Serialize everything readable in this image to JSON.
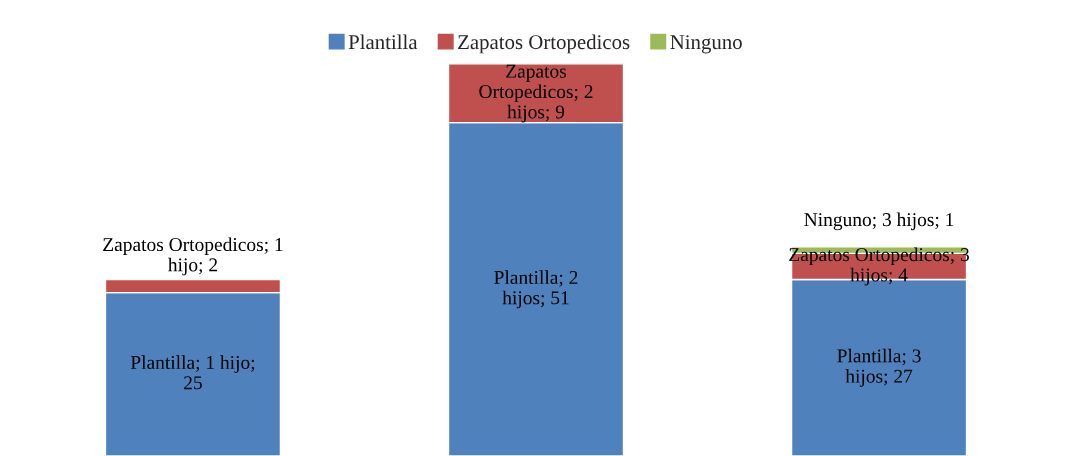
{
  "chart_data": {
    "type": "bar",
    "stacked": true,
    "categories": [
      null,
      null,
      null
    ],
    "tick_labels": false,
    "legend": "top",
    "grid": false,
    "series": [
      {
        "name": "Plantilla",
        "color": "#4f81bd",
        "values": [
          25,
          51,
          27
        ],
        "value_labels": [
          "Plantilla; 1 hijo; 25",
          "Plantilla; 2 hijos; 51",
          "Plantilla; 3 hijos; 27"
        ]
      },
      {
        "name": "Zapatos Ortopedicos",
        "color": "#c0504d",
        "values": [
          2,
          9,
          4
        ],
        "value_labels": [
          "Zapatos Ortopedicos; 1 hijo; 2",
          "Zapatos Ortopedicos; 2 hijos; 9",
          "Zapatos Ortopedicos; 3 hijos; 4"
        ]
      },
      {
        "name": "Ninguno",
        "color": "#9bbb59",
        "values": [
          null,
          null,
          1
        ],
        "value_labels": [
          null,
          null,
          "Ninguno; 3 hijos; 1"
        ]
      }
    ]
  }
}
